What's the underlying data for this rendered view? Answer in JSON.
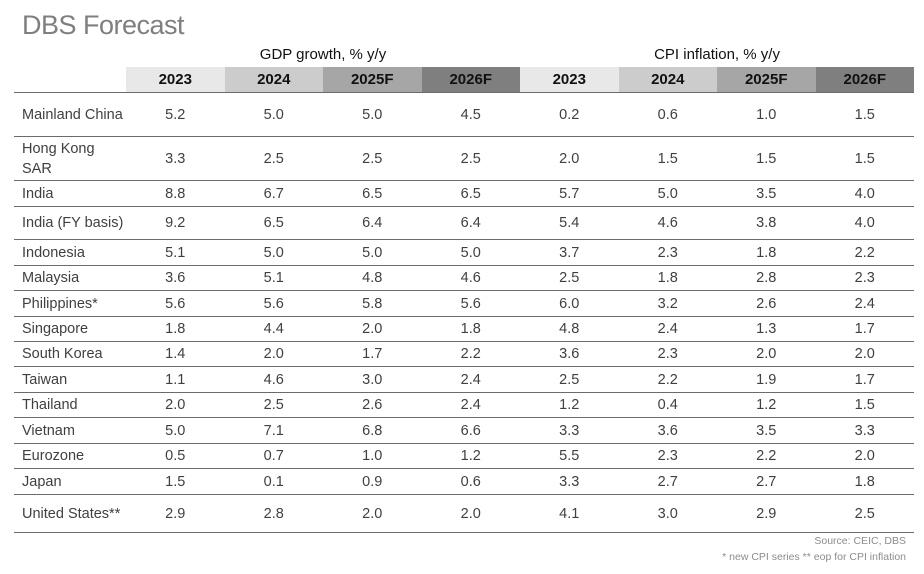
{
  "title": "DBS Forecast",
  "groups": {
    "gdp": "GDP growth, % y/y",
    "cpi": "CPI inflation, % y/y"
  },
  "years": [
    "2023",
    "2024",
    "2025F",
    "2026F"
  ],
  "rows": [
    {
      "country": "Mainland China",
      "gdp": [
        "5.2",
        "5.0",
        "5.0",
        "4.5"
      ],
      "cpi": [
        "0.2",
        "0.6",
        "1.0",
        "1.5"
      ]
    },
    {
      "country": "Hong Kong SAR",
      "gdp": [
        "3.3",
        "2.5",
        "2.5",
        "2.5"
      ],
      "cpi": [
        "2.0",
        "1.5",
        "1.5",
        "1.5"
      ]
    },
    {
      "country": "India",
      "gdp": [
        "8.8",
        "6.7",
        "6.5",
        "6.5"
      ],
      "cpi": [
        "5.7",
        "5.0",
        "3.5",
        "4.0"
      ]
    },
    {
      "country": "India (FY basis)",
      "gdp": [
        "9.2",
        "6.5",
        "6.4",
        "6.4"
      ],
      "cpi": [
        "5.4",
        "4.6",
        "3.8",
        "4.0"
      ]
    },
    {
      "country": "Indonesia",
      "gdp": [
        "5.1",
        "5.0",
        "5.0",
        "5.0"
      ],
      "cpi": [
        "3.7",
        "2.3",
        "1.8",
        "2.2"
      ]
    },
    {
      "country": "Malaysia",
      "gdp": [
        "3.6",
        "5.1",
        "4.8",
        "4.6"
      ],
      "cpi": [
        "2.5",
        "1.8",
        "2.8",
        "2.3"
      ]
    },
    {
      "country": "Philippines*",
      "gdp": [
        "5.6",
        "5.6",
        "5.8",
        "5.6"
      ],
      "cpi": [
        "6.0",
        "3.2",
        "2.6",
        "2.4"
      ]
    },
    {
      "country": "Singapore",
      "gdp": [
        "1.8",
        "4.4",
        "2.0",
        "1.8"
      ],
      "cpi": [
        "4.8",
        "2.4",
        "1.3",
        "1.7"
      ]
    },
    {
      "country": "South Korea",
      "gdp": [
        "1.4",
        "2.0",
        "1.7",
        "2.2"
      ],
      "cpi": [
        "3.6",
        "2.3",
        "2.0",
        "2.0"
      ]
    },
    {
      "country": "Taiwan",
      "gdp": [
        "1.1",
        "4.6",
        "3.0",
        "2.4"
      ],
      "cpi": [
        "2.5",
        "2.2",
        "1.9",
        "1.7"
      ]
    },
    {
      "country": "Thailand",
      "gdp": [
        "2.0",
        "2.5",
        "2.6",
        "2.4"
      ],
      "cpi": [
        "1.2",
        "0.4",
        "1.2",
        "1.5"
      ]
    },
    {
      "country": "Vietnam",
      "gdp": [
        "5.0",
        "7.1",
        "6.8",
        "6.6"
      ],
      "cpi": [
        "3.3",
        "3.6",
        "3.5",
        "3.3"
      ]
    },
    {
      "country": "Eurozone",
      "gdp": [
        "0.5",
        "0.7",
        "1.0",
        "1.2"
      ],
      "cpi": [
        "5.5",
        "2.3",
        "2.2",
        "2.0"
      ]
    },
    {
      "country": "Japan",
      "gdp": [
        "1.5",
        "0.1",
        "0.9",
        "0.6"
      ],
      "cpi": [
        "3.3",
        "2.7",
        "2.7",
        "1.8"
      ]
    },
    {
      "country": "United States**",
      "gdp": [
        "2.9",
        "2.8",
        "2.0",
        "2.0"
      ],
      "cpi": [
        "4.1",
        "3.0",
        "2.9",
        "2.5"
      ]
    }
  ],
  "source": "Source: CEIC, DBS",
  "note": "* new CPI series   ** eop for CPI inflation"
}
